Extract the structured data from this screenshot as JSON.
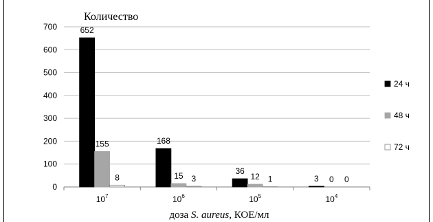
{
  "chart_data": {
    "type": "bar",
    "title": "",
    "ylabel": "Количество",
    "xlabel_prefix": "доза ",
    "xlabel_italic": "S. aureus",
    "xlabel_suffix": ", КОЕ/мл",
    "ylim": [
      0,
      700
    ],
    "yticks": [
      "0",
      "100",
      "200",
      "300",
      "400",
      "500",
      "600",
      "700"
    ],
    "categories": [
      {
        "base": "10",
        "exp": "7"
      },
      {
        "base": "10",
        "exp": "6"
      },
      {
        "base": "10",
        "exp": "5"
      },
      {
        "base": "10",
        "exp": "4"
      }
    ],
    "series": [
      {
        "name": "24 ч",
        "color": "#000000",
        "values": [
          652,
          168,
          36,
          3
        ]
      },
      {
        "name": "48 ч",
        "color": "#a6a6a6",
        "values": [
          155,
          15,
          12,
          0
        ]
      },
      {
        "name": "72 ч",
        "color": "#ffffff",
        "values": [
          8,
          3,
          1,
          0
        ]
      }
    ],
    "grid": true,
    "legend_position": "right"
  }
}
